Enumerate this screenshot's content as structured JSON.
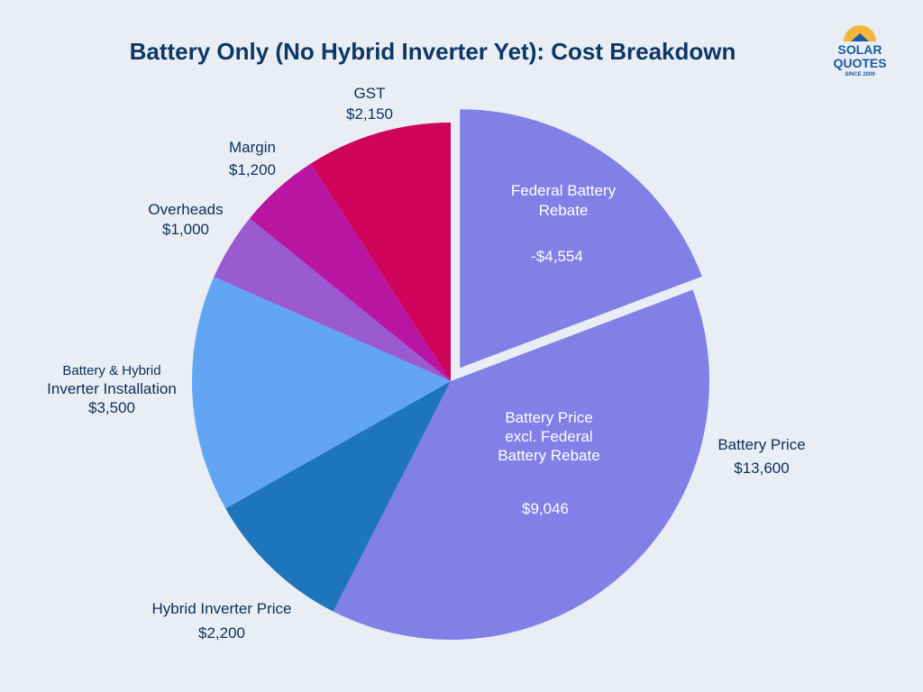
{
  "title": "Battery Only (No Hybrid Inverter Yet): Cost Breakdown",
  "logo": {
    "line1": "SOLAR",
    "line2": "QUOTES",
    "line3": "SINCE 2009",
    "icon": "house-sun-icon"
  },
  "chart_data": {
    "type": "pie",
    "title": "Battery Only (No Hybrid Inverter Yet): Cost Breakdown",
    "slices": [
      {
        "key": "rebate",
        "label": "Federal Battery Rebate",
        "display": "-$4,554",
        "value": 4554,
        "color": "#8080e6",
        "exploded": true
      },
      {
        "key": "battery",
        "label": "Battery Price excl. Federal Battery Rebate",
        "display": "$9,046",
        "value": 9046,
        "color": "#8080e6"
      },
      {
        "key": "inverter",
        "label": "Hybrid Inverter Price",
        "display": "$2,200",
        "value": 2200,
        "color": "#1f75bb"
      },
      {
        "key": "install",
        "label": "Battery & Hybrid Inverter Installation",
        "display": "$3,500",
        "value": 3500,
        "color": "#62a5f5"
      },
      {
        "key": "overheads",
        "label": "Overheads",
        "display": "$1,000",
        "value": 1000,
        "color": "#9a5bd1"
      },
      {
        "key": "margin",
        "label": "Margin",
        "display": "$1,200",
        "value": 1200,
        "color": "#b915a3"
      },
      {
        "key": "gst",
        "label": "GST",
        "display": "$2,150",
        "value": 2150,
        "color": "#d0035a"
      }
    ],
    "annotations": {
      "rebate_inner": [
        "Federal Battery",
        "Rebate"
      ],
      "rebate_value": "-$4,554",
      "battery_inner": [
        "Battery Price",
        "excl. Federal",
        "Battery Rebate"
      ],
      "battery_value": "$9,046",
      "battery_outer_label": "Battery Price",
      "battery_outer_value": "$13,600",
      "inverter_label": "Hybrid Inverter Price",
      "inverter_value": "$2,200",
      "install_label_1": "Battery & Hybrid",
      "install_label_2": "Inverter Installation",
      "install_value": "$3,500",
      "overheads_label": "Overheads",
      "overheads_value": "$1,000",
      "margin_label": "Margin",
      "margin_value": "$1,200",
      "gst_label": "GST",
      "gst_value": "$2,150"
    }
  }
}
